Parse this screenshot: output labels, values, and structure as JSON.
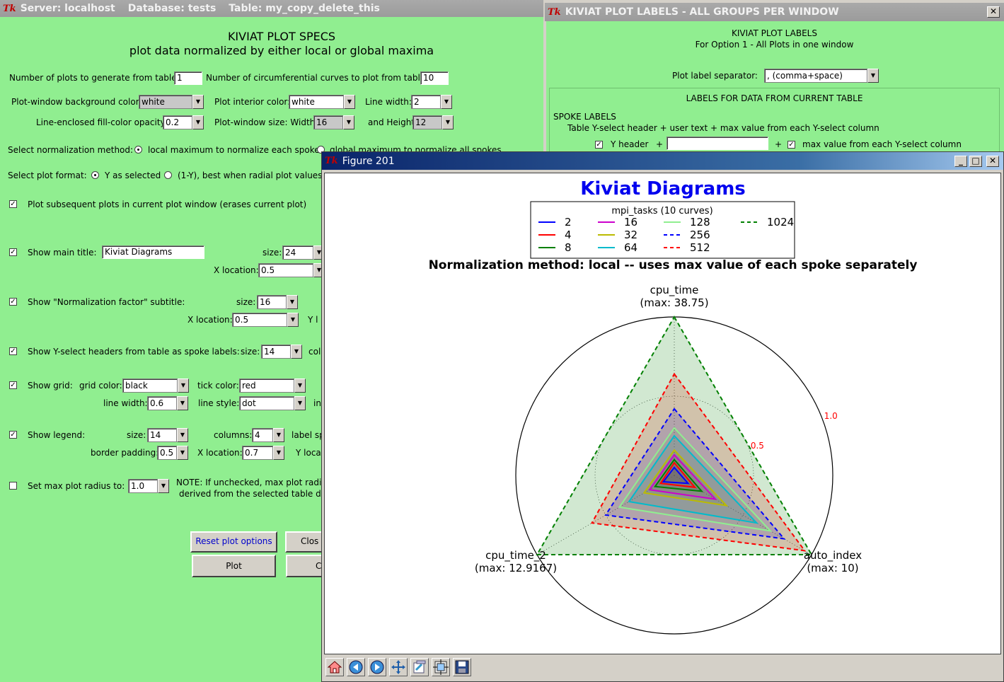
{
  "specs_window": {
    "title_server": "Server: localhost",
    "title_database": "Database: tests",
    "title_table": "Table: my_copy_delete_this",
    "heading": "KIVIAT PLOT SPECS",
    "subheading": "plot data normalized by either local or global maxima",
    "num_plots_label": "Number of plots to generate from table:",
    "num_plots_value": "1",
    "num_curves_label": "Number of circumferential curves to plot from table:",
    "num_curves_value": "10",
    "bg_color_label": "Plot-window background color:",
    "bg_color_value": "white",
    "interior_color_label": "Plot interior color:",
    "interior_color_value": "white",
    "line_width_label": "Line width:",
    "line_width_value": "2",
    "fill_opacity_label": "Line-enclosed fill-color opacity:",
    "fill_opacity_value": "0.2",
    "window_size_label": "Plot-window size: Width",
    "width_value": "16",
    "height_label": "and Height",
    "height_value": "12",
    "norm_method_label": "Select normalization method:",
    "norm_local_label": "local maximum to normalize each spoke",
    "norm_global_label": "global maximum to normalize all spokes",
    "plot_format_label": "Select plot format:",
    "format_y_label": "Y as selected",
    "format_1y_label": "(1-Y), best when radial plot values",
    "subsequent_label": "Plot subsequent plots in current plot window (erases current plot)",
    "main_title_label": "Show main title:",
    "main_title_value": "Kiviat Diagrams",
    "main_title_size_label": "size:",
    "main_title_size": "24",
    "main_title_xloc_label": "X location:",
    "main_title_xloc": "0.5",
    "subtitle_label": "Show \"Normalization factor\" subtitle:",
    "subtitle_size_label": "size:",
    "subtitle_size": "16",
    "subtitle_xloc_label": "X location:",
    "subtitle_xloc": "0.5",
    "subtitle_yloc_label": "Y l",
    "spoke_labels_label": "Show Y-select headers from table as spoke labels:",
    "spoke_size_label": "size:",
    "spoke_size": "14",
    "spoke_color_label": "col",
    "grid_label": "Show grid:",
    "grid_color_label": "grid color:",
    "grid_color": "black",
    "tick_color_label": "tick color:",
    "tick_color": "red",
    "grid_lw_label": "line width:",
    "grid_lw": "0.6",
    "grid_ls_label": "line style:",
    "grid_ls": "dot",
    "grid_in_label": "in",
    "legend_label": "Show legend:",
    "legend_size_label": "size:",
    "legend_size": "14",
    "legend_cols_label": "columns:",
    "legend_cols": "4",
    "legend_labelsp_label": "label sp",
    "legend_pad_label": "border padding:",
    "legend_pad": "0.5",
    "legend_xloc_label": "X location:",
    "legend_xloc": "0.7",
    "legend_yloc_label": "Y loca",
    "maxrad_label": "Set max plot radius to:",
    "maxrad_value": "1.0",
    "note_line1": "NOTE: If unchecked, max plot radiu",
    "note_line2": "derived from the selected table dat",
    "reset_button": "Reset plot options",
    "close_button": "Clos",
    "plot_button": "Plot",
    "c_button": "C"
  },
  "labels_window": {
    "title": "KIVIAT PLOT LABELS - ALL GROUPS PER WINDOW",
    "close_glyph": "✕",
    "heading": "KIVIAT PLOT LABELS",
    "subheading": "For Option 1 - All Plots in one window",
    "separator_label": "Plot label separator:",
    "separator_value": ", (comma+space)",
    "section_title": "LABELS FOR DATA FROM CURRENT TABLE",
    "spoke_labels": "SPOKE LABELS",
    "spoke_desc": "Table Y-select header + user text + max value from each Y-select column",
    "yheader_label": "Y header",
    "plus1": "+",
    "plus2": "+",
    "maxvalue_label": "max value from each Y-select column"
  },
  "figure_window": {
    "title": "Figure 201",
    "min_glyph": "_",
    "max_glyph": "□",
    "close_glyph": "✕",
    "toolbar_icons": [
      "home-icon",
      "back-icon",
      "forward-icon",
      "pan-icon",
      "configure-icon",
      "subplots-icon",
      "save-icon"
    ]
  },
  "chart_data": {
    "type": "radar",
    "title": "Kiviat Diagrams",
    "title_color": "#0000ee",
    "subtitle": "Normalization method: local -- uses max value of each spoke separately",
    "legend_title": "mpi_tasks (10 curves)",
    "legend_columns": 4,
    "spokes": [
      {
        "name": "cpu_time",
        "max_label": "(max: 38.75)"
      },
      {
        "name": "auto_index",
        "max_label": "(max: 10)"
      },
      {
        "name": "cpu_time_2",
        "max_label": "(max: 12.9167)"
      }
    ],
    "radial_ticks": [
      "0.5",
      "1.0"
    ],
    "tick_color": "#ff0000",
    "rmax": 1.0,
    "fill_opacity": 0.2,
    "series": [
      {
        "name": "2",
        "color": "#0000ff",
        "dashed": false,
        "values": [
          0.05,
          0.1,
          0.08
        ]
      },
      {
        "name": "4",
        "color": "#ff0000",
        "dashed": false,
        "values": [
          0.08,
          0.15,
          0.1
        ]
      },
      {
        "name": "8",
        "color": "#008000",
        "dashed": false,
        "values": [
          0.1,
          0.2,
          0.14
        ]
      },
      {
        "name": "16",
        "color": "#cc00cc",
        "dashed": false,
        "values": [
          0.13,
          0.3,
          0.18
        ]
      },
      {
        "name": "32",
        "color": "#bbbb00",
        "dashed": false,
        "values": [
          0.16,
          0.38,
          0.22
        ]
      },
      {
        "name": "64",
        "color": "#00bbcc",
        "dashed": false,
        "values": [
          0.25,
          0.6,
          0.33
        ]
      },
      {
        "name": "128",
        "color": "#90ee90",
        "dashed": false,
        "values": [
          0.3,
          0.7,
          0.4
        ]
      },
      {
        "name": "256",
        "color": "#0000ff",
        "dashed": true,
        "values": [
          0.42,
          0.8,
          0.5
        ]
      },
      {
        "name": "512",
        "color": "#ff0000",
        "dashed": true,
        "values": [
          0.64,
          0.95,
          0.6
        ]
      },
      {
        "name": "1024",
        "color": "#008000",
        "dashed": true,
        "values": [
          1.0,
          1.0,
          1.0
        ]
      }
    ]
  }
}
